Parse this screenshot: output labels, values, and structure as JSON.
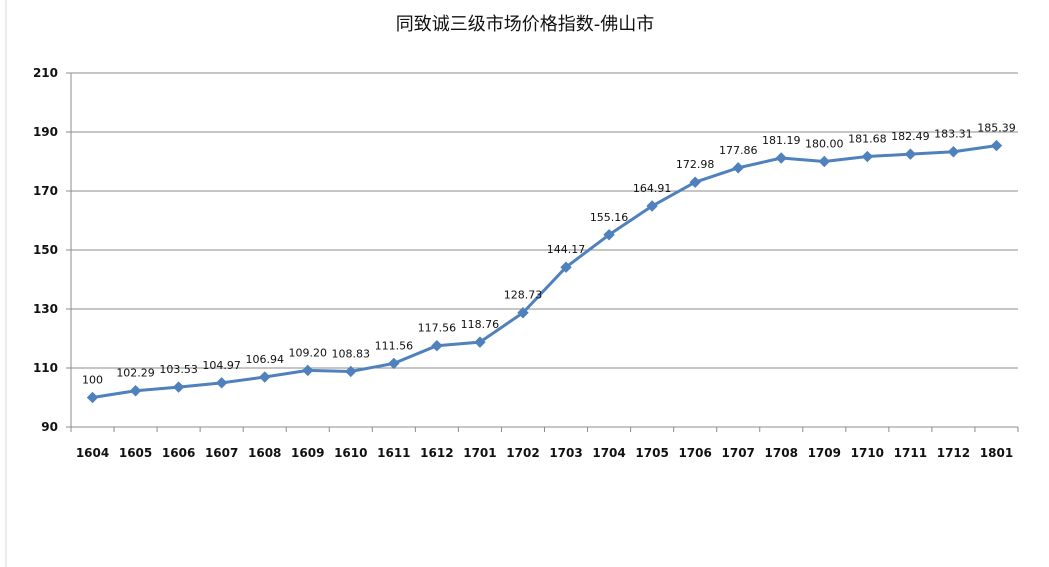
{
  "chart_data": {
    "type": "line",
    "title": "同致诚三级市场价格指数-佛山市",
    "xlabel": "",
    "ylabel": "",
    "categories": [
      "1604",
      "1605",
      "1606",
      "1607",
      "1608",
      "1609",
      "1610",
      "1611",
      "1612",
      "1701",
      "1702",
      "1703",
      "1704",
      "1705",
      "1706",
      "1707",
      "1708",
      "1709",
      "1710",
      "1711",
      "1712",
      "1801"
    ],
    "series": [
      {
        "values": [
          100,
          102.29,
          103.53,
          104.97,
          106.94,
          109.2,
          108.83,
          111.56,
          117.56,
          118.76,
          128.73,
          144.17,
          155.16,
          164.91,
          172.98,
          177.86,
          181.19,
          180.0,
          181.68,
          182.49,
          183.31,
          185.39
        ]
      }
    ],
    "data_labels": [
      "100",
      "102.29",
      "103.53",
      "104.97",
      "106.94",
      "109.20",
      "108.83",
      "111.56",
      "117.56",
      "118.76",
      "128.73",
      "144.17",
      "155.16",
      "164.91",
      "172.98",
      "177.86",
      "181.19",
      "180.00",
      "181.68",
      "182.49",
      "183.31",
      "185.39"
    ],
    "yticks": [
      "90",
      "110",
      "130",
      "150",
      "170",
      "190",
      "210"
    ],
    "ylim": [
      90,
      210
    ],
    "grid": true,
    "legend": "none",
    "line_color": "#4f81bd",
    "grid_color": "#8c8c8c"
  }
}
